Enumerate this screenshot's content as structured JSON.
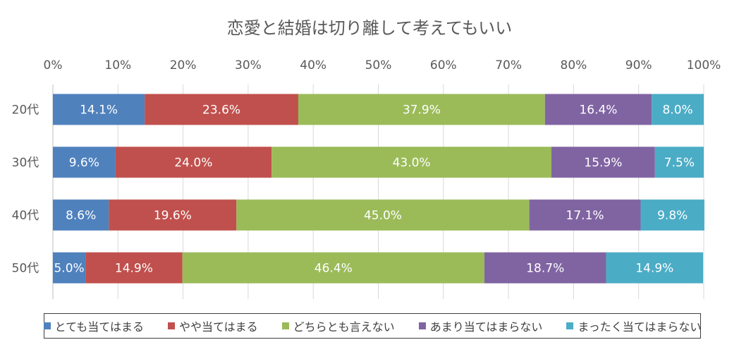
{
  "chart_data": {
    "type": "bar",
    "orientation": "horizontal",
    "stacked": "percent",
    "title": "恋愛と結婚は切り離して考えてもいい",
    "categories": [
      "20代",
      "30代",
      "40代",
      "50代"
    ],
    "x_ticks": [
      "0%",
      "10%",
      "20%",
      "30%",
      "40%",
      "50%",
      "60%",
      "70%",
      "80%",
      "90%",
      "100%"
    ],
    "xlim": [
      0,
      100
    ],
    "grid": true,
    "legend_position": "bottom",
    "series": [
      {
        "name": "とても当てはまる",
        "color": "#4f81bd",
        "values": [
          14.1,
          9.6,
          8.6,
          5.0
        ],
        "labels": [
          "14.1%",
          "9.6%",
          "8.6%",
          "5.0%"
        ]
      },
      {
        "name": "やや当てはまる",
        "color": "#c0504d",
        "values": [
          23.6,
          24.0,
          19.6,
          14.9
        ],
        "labels": [
          "23.6%",
          "24.0%",
          "19.6%",
          "14.9%"
        ]
      },
      {
        "name": "どちらとも言えない",
        "color": "#9bbb59",
        "values": [
          37.9,
          43.0,
          45.0,
          46.4
        ],
        "labels": [
          "37.9%",
          "43.0%",
          "45.0%",
          "46.4%"
        ]
      },
      {
        "name": "あまり当てはまらない",
        "color": "#8064a2",
        "values": [
          16.4,
          15.9,
          17.1,
          18.7
        ],
        "labels": [
          "16.4%",
          "15.9%",
          "17.1%",
          "18.7%"
        ]
      },
      {
        "name": "まったく当てはまらない",
        "color": "#4bacc6",
        "values": [
          8.0,
          7.5,
          9.8,
          14.9
        ],
        "labels": [
          "8.0%",
          "7.5%",
          "9.8%",
          "14.9%"
        ]
      }
    ]
  }
}
